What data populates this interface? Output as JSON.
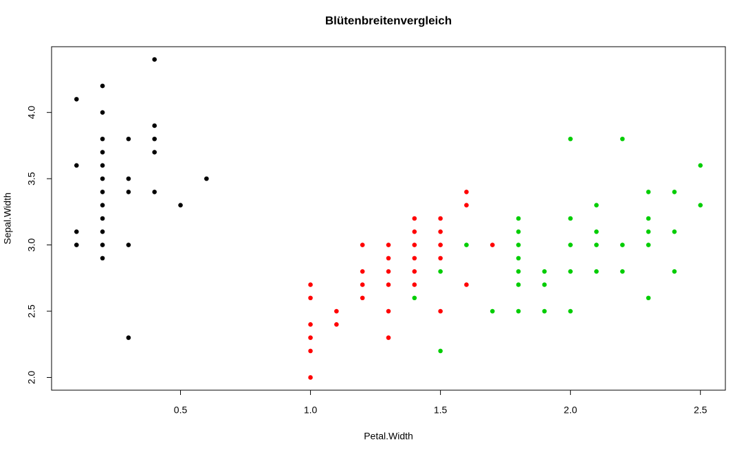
{
  "chart_data": {
    "type": "scatter",
    "title": "Blütenbreitenvergleich",
    "x_label": "Petal.Width",
    "y_label": "Sepal.Width",
    "xlim": [
      0.004,
      2.596
    ],
    "ylim": [
      1.904,
      4.496
    ],
    "xticks": [
      0.5,
      {
        "value": 1,
        "label": "1.0"
      },
      1.5,
      {
        "value": 2,
        "label": "2.0"
      },
      2.5
    ],
    "yticks": [
      {
        "value": 2,
        "label": "2.0"
      },
      2.5,
      {
        "value": 3,
        "label": "3.0"
      },
      3.5,
      {
        "value": 4,
        "label": "4.0"
      }
    ],
    "grid": false,
    "series": [
      {
        "color": "#000000",
        "x": [
          0.1,
          0.1,
          0.1,
          0.1,
          0.2,
          0.2,
          0.2,
          0.2,
          0.2,
          0.2,
          0.2,
          0.2,
          0.2,
          0.2,
          0.2,
          0.2,
          0.3,
          0.3,
          0.3,
          0.3,
          0.3,
          0.4,
          0.4,
          0.4,
          0.4,
          0.4,
          0.5,
          0.6
        ],
        "values": [
          4.1,
          3.6,
          3.1,
          3.0,
          4.2,
          4.0,
          3.8,
          3.7,
          3.6,
          3.5,
          3.4,
          3.3,
          3.2,
          3.1,
          3.0,
          2.9,
          3.8,
          3.5,
          3.4,
          3.0,
          2.3,
          4.4,
          3.9,
          3.8,
          3.7,
          3.4,
          3.3,
          3.5
        ]
      },
      {
        "color": "#ff0000",
        "x": [
          1.0,
          1.0,
          1.0,
          1.0,
          1.0,
          1.0,
          1.1,
          1.1,
          1.2,
          1.2,
          1.2,
          1.2,
          1.3,
          1.3,
          1.3,
          1.3,
          1.3,
          1.3,
          1.4,
          1.4,
          1.4,
          1.4,
          1.4,
          1.4,
          1.5,
          1.5,
          1.5,
          1.5,
          1.5,
          1.6,
          1.6,
          1.6,
          1.7
        ],
        "values": [
          2.7,
          2.6,
          2.4,
          2.3,
          2.2,
          2.0,
          2.5,
          2.4,
          3.0,
          2.8,
          2.7,
          2.6,
          3.0,
          2.9,
          2.8,
          2.7,
          2.5,
          2.3,
          3.2,
          3.1,
          3.0,
          2.9,
          2.8,
          2.7,
          3.2,
          3.1,
          3.0,
          2.9,
          2.5,
          3.4,
          3.3,
          2.7,
          3.0
        ]
      },
      {
        "color": "#00cd00",
        "x": [
          1.4,
          1.5,
          1.5,
          1.6,
          1.7,
          1.8,
          1.8,
          1.8,
          1.8,
          1.8,
          1.8,
          1.8,
          1.9,
          1.9,
          1.9,
          2.0,
          2.0,
          2.0,
          2.0,
          2.0,
          2.1,
          2.1,
          2.1,
          2.1,
          2.2,
          2.2,
          2.2,
          2.3,
          2.3,
          2.3,
          2.3,
          2.3,
          2.4,
          2.4,
          2.4,
          2.5,
          2.5
        ],
        "values": [
          2.6,
          2.8,
          2.2,
          3.0,
          2.5,
          3.2,
          3.1,
          3.0,
          2.9,
          2.8,
          2.7,
          2.5,
          2.8,
          2.7,
          2.5,
          3.8,
          3.2,
          3.0,
          2.8,
          2.5,
          3.3,
          3.1,
          3.0,
          2.8,
          3.8,
          3.0,
          2.8,
          3.4,
          3.2,
          3.1,
          3.0,
          2.6,
          3.4,
          3.1,
          2.8,
          3.6,
          3.3
        ]
      }
    ]
  }
}
